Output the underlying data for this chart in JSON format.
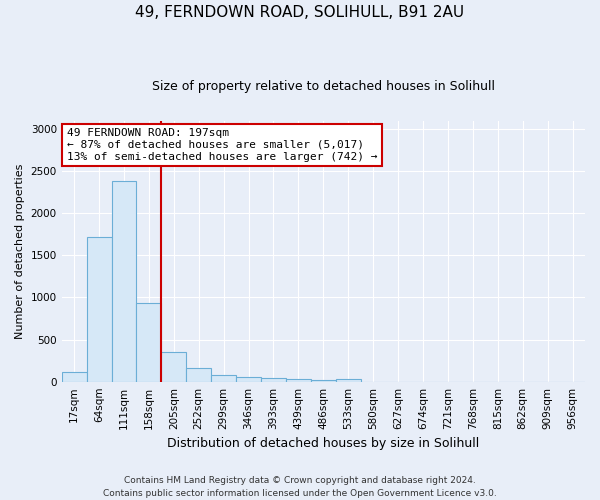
{
  "title1": "49, FERNDOWN ROAD, SOLIHULL, B91 2AU",
  "title2": "Size of property relative to detached houses in Solihull",
  "xlabel": "Distribution of detached houses by size in Solihull",
  "ylabel": "Number of detached properties",
  "categories": [
    "17sqm",
    "64sqm",
    "111sqm",
    "158sqm",
    "205sqm",
    "252sqm",
    "299sqm",
    "346sqm",
    "393sqm",
    "439sqm",
    "486sqm",
    "533sqm",
    "580sqm",
    "627sqm",
    "674sqm",
    "721sqm",
    "768sqm",
    "815sqm",
    "862sqm",
    "909sqm",
    "956sqm"
  ],
  "values": [
    120,
    1720,
    2380,
    930,
    350,
    160,
    85,
    55,
    40,
    30,
    25,
    30,
    0,
    0,
    0,
    0,
    0,
    0,
    0,
    0,
    0
  ],
  "bar_color": "#d6e8f7",
  "bar_edge_color": "#6baed6",
  "red_line_index": 4,
  "red_line_color": "#cc0000",
  "annotation_line1": "49 FERNDOWN ROAD: 197sqm",
  "annotation_line2": "← 87% of detached houses are smaller (5,017)",
  "annotation_line3": "13% of semi-detached houses are larger (742) →",
  "annotation_box_facecolor": "#ffffff",
  "annotation_box_edgecolor": "#cc0000",
  "ylim": [
    0,
    3100
  ],
  "yticks": [
    0,
    500,
    1000,
    1500,
    2000,
    2500,
    3000
  ],
  "footer_line1": "Contains HM Land Registry data © Crown copyright and database right 2024.",
  "footer_line2": "Contains public sector information licensed under the Open Government Licence v3.0.",
  "bg_color": "#e8eef8",
  "plot_bg_color": "#e8eef8",
  "grid_color": "#ffffff",
  "title1_fontsize": 11,
  "title2_fontsize": 9,
  "ylabel_fontsize": 8,
  "xlabel_fontsize": 9,
  "annotation_fontsize": 8,
  "tick_fontsize": 7.5
}
